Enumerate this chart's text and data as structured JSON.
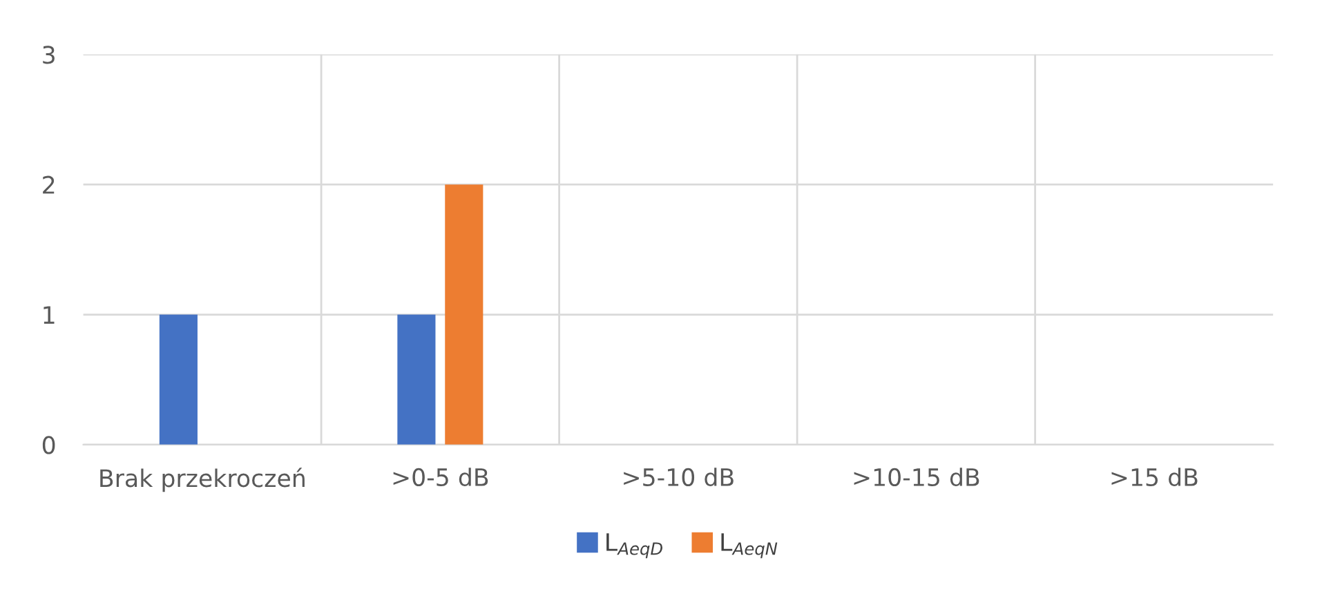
{
  "chart_data": {
    "type": "bar",
    "categories": [
      "Brak przekroczeń",
      ">0-5 dB",
      ">5-10 dB",
      ">10-15 dB",
      ">15 dB"
    ],
    "series": [
      {
        "name": "L$_{AeqD}$",
        "color": "#4472c4",
        "values": [
          1,
          1,
          0,
          0,
          0
        ]
      },
      {
        "name": "L$_{AeqN}$",
        "color": "#ed7d31",
        "values": [
          0,
          2,
          0,
          0,
          0
        ]
      }
    ],
    "ylim": [
      0,
      3
    ],
    "yticks": [
      0,
      1,
      2,
      3
    ],
    "grid": true,
    "legend": "bottom"
  }
}
